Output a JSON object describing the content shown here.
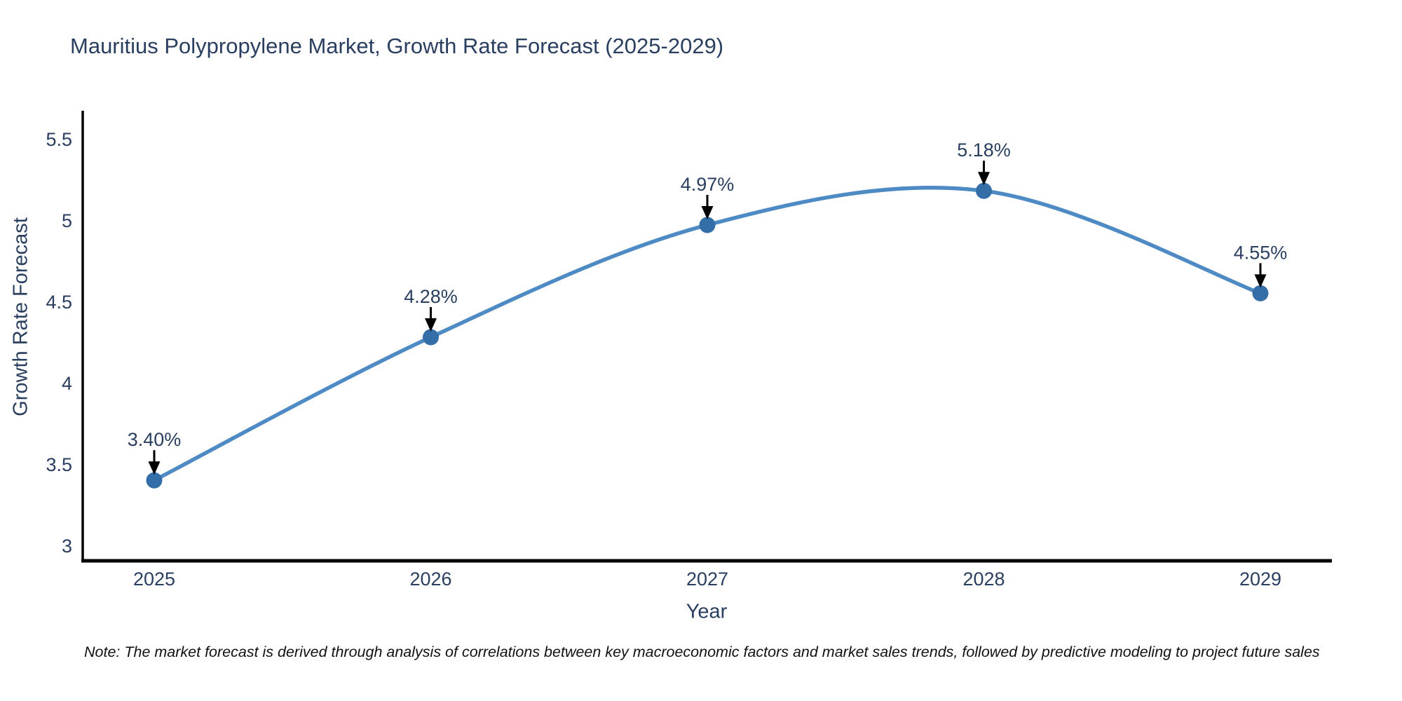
{
  "page": {
    "background": "#ffffff"
  },
  "chart_data": {
    "type": "line",
    "title": "Mauritius Polypropylene Market, Growth Rate Forecast (2025-2029)",
    "xlabel": "Year",
    "ylabel": "Growth Rate Forecast",
    "x": [
      "2025",
      "2026",
      "2027",
      "2028",
      "2029"
    ],
    "series": [
      {
        "name": "Growth Rate Forecast",
        "values": [
          3.4,
          4.28,
          4.97,
          5.18,
          4.55
        ],
        "point_labels": [
          "3.40%",
          "4.28%",
          "4.97%",
          "5.18%",
          "4.55%"
        ]
      }
    ],
    "yticks": [
      "5.5",
      "5",
      "4.5",
      "4",
      "3.5",
      "3"
    ],
    "ytick_values": [
      5.5,
      5,
      4.5,
      4,
      3.5,
      3
    ],
    "ylim": [
      2.9,
      5.66
    ],
    "grid": false,
    "legend_position": "none",
    "curve": "spline",
    "marker_style": "circle",
    "annotation_style": "label-with-down-arrow",
    "colors": {
      "line": "#4e8ac4",
      "marker": "#336ea8",
      "axis": "#000000",
      "tick_text": "#2a3f5f",
      "annotation_text": "#2a3f5f",
      "annotation_arrow": "#000000"
    }
  },
  "note": {
    "text": "Note: The market forecast is derived through analysis of correlations between key macroeconomic factors and market sales trends, followed by predictive modeling to project future sales"
  }
}
